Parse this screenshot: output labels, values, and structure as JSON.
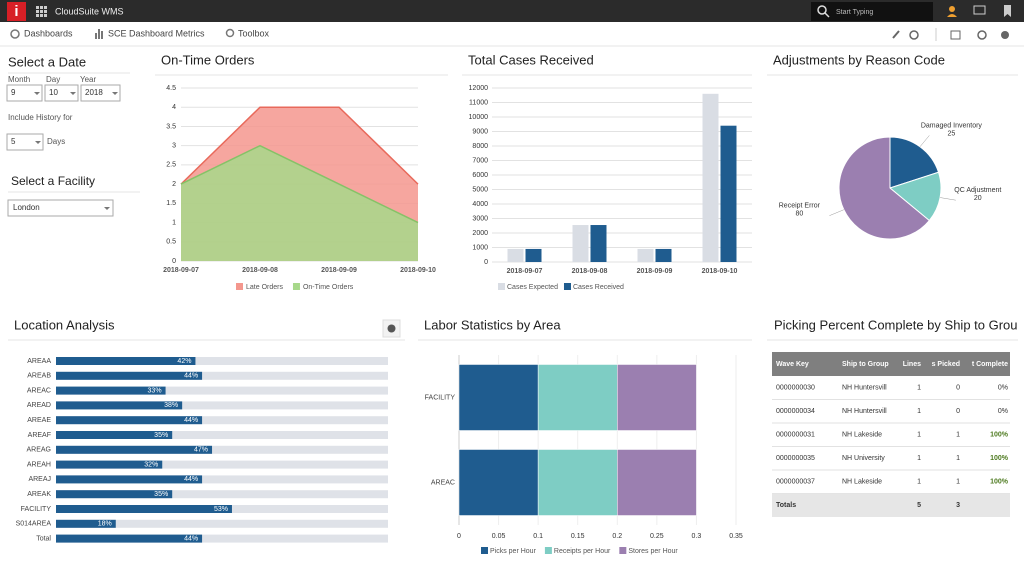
{
  "header": {
    "logo": "i",
    "app_name": "CloudSuite WMS",
    "search_placeholder": "Start Typing"
  },
  "nav": {
    "items": [
      "Dashboards",
      "SCE Dashboard Metrics",
      "Toolbox"
    ]
  },
  "filters": {
    "date_title": "Select a Date",
    "month_label": "Month",
    "day_label": "Day",
    "year_label": "Year",
    "month": "9",
    "day": "10",
    "year": "2018",
    "history_label": "Include History for",
    "history_days": "5",
    "days_label": "Days",
    "facility_title": "Select a Facility",
    "facility": "London"
  },
  "chart_data": [
    {
      "type": "area",
      "title": "On-Time Orders",
      "categories": [
        "2018-09-07",
        "2018-09-08",
        "2018-09-09",
        "2018-09-10"
      ],
      "series": [
        {
          "name": "Late Orders",
          "color": "#f4978e",
          "line_color": "#e8695b",
          "values": [
            2,
            4,
            4,
            2
          ]
        },
        {
          "name": "On-Time Orders",
          "color": "#a7d88a",
          "line_color": "#86c267",
          "values": [
            2,
            3,
            2,
            1
          ]
        }
      ],
      "ylim": [
        0,
        4.5
      ],
      "yticks": [
        0,
        0.5,
        1,
        1.5,
        2,
        2.5,
        3,
        3.5,
        4,
        4.5
      ],
      "grid": true
    },
    {
      "type": "bar",
      "title": "Total Cases Received",
      "categories": [
        "2018-09-07",
        "2018-09-08",
        "2018-09-09",
        "2018-09-10"
      ],
      "series": [
        {
          "name": "Cases Expected",
          "color": "#d9dde4",
          "values": [
            900,
            2550,
            900,
            11600
          ]
        },
        {
          "name": "Cases Received",
          "color": "#1f5c8f",
          "values": [
            900,
            2550,
            900,
            9400
          ]
        }
      ],
      "ylim": [
        0,
        12000
      ],
      "yticks": [
        0,
        1000,
        2000,
        3000,
        4000,
        5000,
        6000,
        7000,
        8000,
        9000,
        10000,
        11000,
        12000
      ],
      "grid": true
    },
    {
      "type": "pie",
      "title": "Adjustments by Reason Code",
      "categories": [
        "Damaged Inventory",
        "QC Adjustment",
        "Receipt Error"
      ],
      "values": [
        25,
        20,
        80
      ],
      "colors": [
        "#1f5c8f",
        "#7ecdc4",
        "#9b7fb0"
      ]
    },
    {
      "type": "hbar",
      "title": "Location Analysis",
      "categories": [
        "AREAA",
        "AREAB",
        "AREAC",
        "AREAD",
        "AREAE",
        "AREAF",
        "AREAG",
        "AREAH",
        "AREAJ",
        "AREAK",
        "FACILITY",
        "S014AREA",
        "Total"
      ],
      "values": [
        42,
        44,
        33,
        38,
        44,
        35,
        47,
        32,
        44,
        35,
        53,
        18,
        44
      ],
      "value_labels": [
        "42%",
        "44%",
        "33%",
        "38%",
        "44%",
        "35%",
        "47%",
        "32%",
        "44%",
        "35%",
        "53%",
        "18%",
        "44%"
      ],
      "xlim": [
        0,
        100
      ],
      "color": "#1f5c8f",
      "track_color": "#dfe2e8"
    },
    {
      "type": "stacked-hbar",
      "title": "Labor Statistics by Area",
      "categories": [
        "FACILITY",
        "AREAC"
      ],
      "series": [
        {
          "name": "Picks per Hour",
          "color": "#1f5c8f",
          "values": [
            0.1,
            0.1
          ]
        },
        {
          "name": "Receipts per Hour",
          "color": "#7ecdc4",
          "values": [
            0.1,
            0.1
          ]
        },
        {
          "name": "Stores per Hour",
          "color": "#9b7fb0",
          "values": [
            0.1,
            0.1
          ]
        }
      ],
      "xlim": [
        0,
        0.35
      ],
      "xticks": [
        0,
        0.05,
        0.1,
        0.15,
        0.2,
        0.25,
        0.3,
        0.35
      ],
      "grid": true
    }
  ],
  "table": {
    "title": "Picking Percent Complete by Ship to Grou",
    "columns": [
      "Wave Key",
      "Ship to Group",
      "Lines",
      "s Picked",
      "t Complete"
    ],
    "rows": [
      [
        "0000000030",
        "NH Huntersvill",
        "1",
        "0",
        "0%"
      ],
      [
        "0000000034",
        "NH Huntersvill",
        "1",
        "0",
        "0%"
      ],
      [
        "0000000031",
        "NH Lakeside",
        "1",
        "1",
        "100%"
      ],
      [
        "0000000035",
        "NH University",
        "1",
        "1",
        "100%"
      ],
      [
        "0000000037",
        "NH Lakeside",
        "1",
        "1",
        "100%"
      ]
    ],
    "totals": {
      "label": "Totals",
      "lines": "5",
      "picked": "3"
    }
  }
}
